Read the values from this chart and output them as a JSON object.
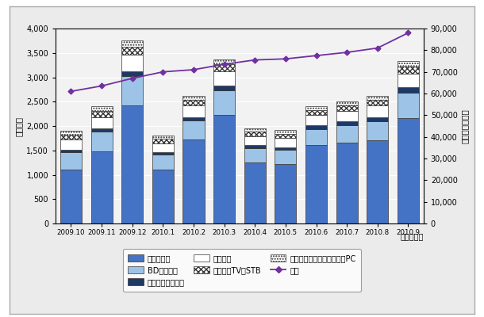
{
  "months": [
    "2009.10",
    "2009.11",
    "2009.12",
    "2010.1",
    "2010.2",
    "2010.3",
    "2010.4",
    "2010.5",
    "2010.6",
    "2010.7",
    "2010.8",
    "2010.9"
  ],
  "slim_tv": [
    1100,
    1480,
    2420,
    1100,
    1720,
    2220,
    1260,
    1220,
    1610,
    1660,
    1710,
    2160
  ],
  "bd_recorder": [
    360,
    400,
    600,
    310,
    390,
    510,
    290,
    290,
    330,
    360,
    390,
    530
  ],
  "digital_recorder": [
    60,
    75,
    100,
    55,
    75,
    95,
    55,
    55,
    70,
    70,
    80,
    100
  ],
  "tuner": [
    200,
    230,
    340,
    185,
    235,
    295,
    185,
    185,
    215,
    225,
    235,
    290
  ],
  "cable_stb": [
    100,
    120,
    170,
    90,
    115,
    145,
    95,
    95,
    105,
    110,
    120,
    145
  ],
  "terrestrial_pc": [
    80,
    95,
    130,
    70,
    85,
    105,
    70,
    70,
    80,
    85,
    90,
    110
  ],
  "cumulative": [
    61000,
    63500,
    67000,
    70000,
    71000,
    73500,
    75500,
    76000,
    77500,
    79000,
    81000,
    88000
  ],
  "colors": {
    "slim_tv": "#4472C4",
    "bd_recorder": "#9DC3E6",
    "digital_recorder": "#1F3864",
    "tuner": "#FFFFFF",
    "cable_stb": "#7F7F7F",
    "terrestrial_pc": "#D9D9D9",
    "cumulative": "#7030A0"
  },
  "left_ylabel": "（千台）",
  "right_ylabel": "（累計・千台）",
  "xlabel": "（年・月）",
  "ylim_left": [
    0,
    4000
  ],
  "ylim_right": [
    0,
    90000
  ],
  "yticks_left": [
    0,
    500,
    1000,
    1500,
    2000,
    2500,
    3000,
    3500,
    4000
  ],
  "yticks_right": [
    0,
    10000,
    20000,
    30000,
    40000,
    50000,
    60000,
    70000,
    80000,
    90000
  ],
  "legend_labels": [
    "薄型テレビ",
    "BDレコーダ",
    "デジタルレコーダ",
    "チューナ",
    "ケーブルTV用STB",
    "地上デジタルチューナ内蔵PC",
    "累計"
  ],
  "legend_cols": 3,
  "fig_bg": "#EBEBEB",
  "chart_bg": "#F2F2F2",
  "outer_bg": "#FFFFFF"
}
